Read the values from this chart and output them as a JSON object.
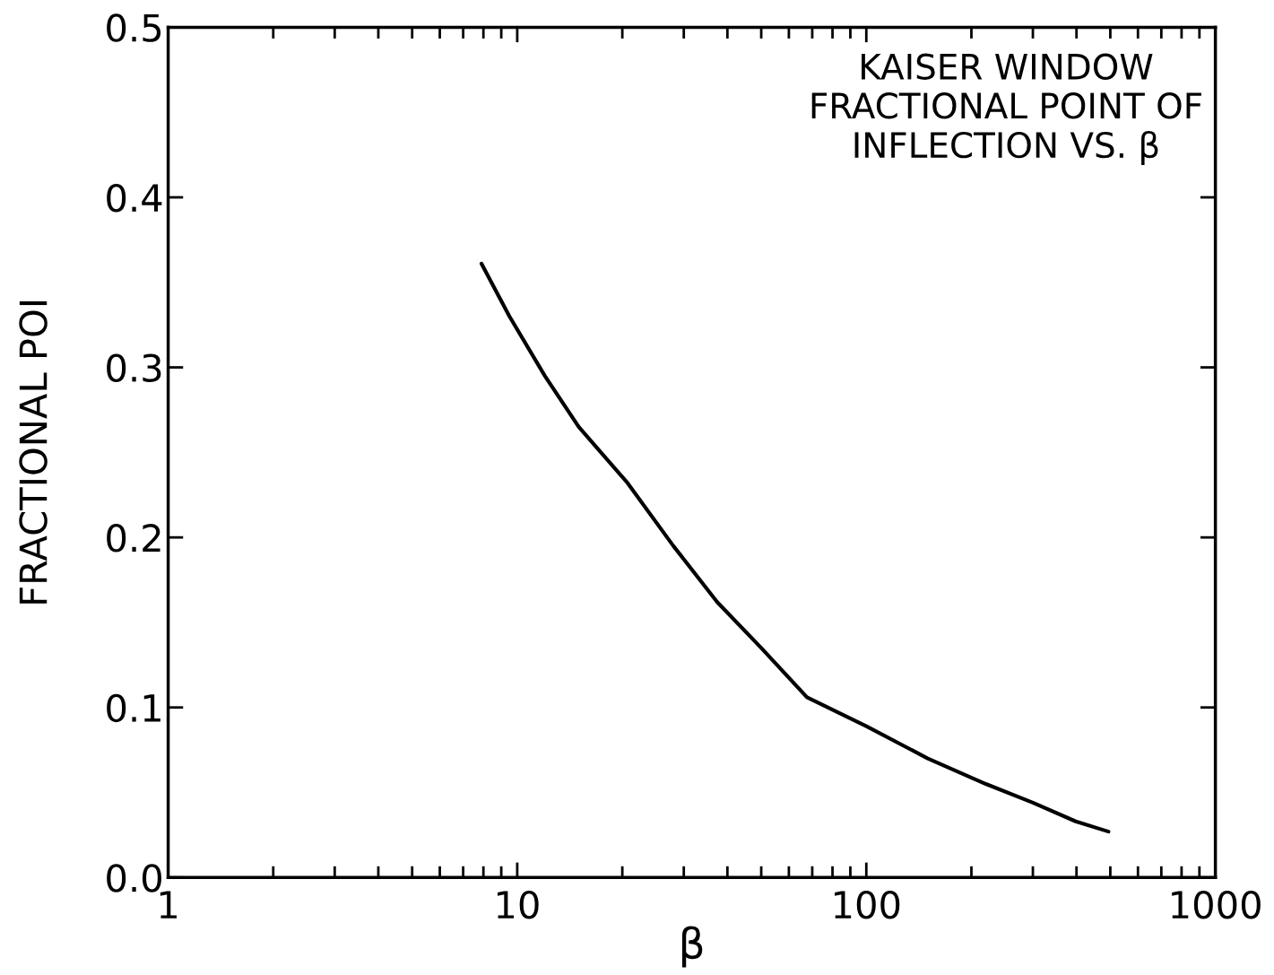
{
  "chart_data": {
    "type": "line",
    "title": "KAISER WINDOW\nFRACTIONAL POINT OF\nINFLECTION VS. β",
    "xlabel": "β",
    "ylabel": "FRACTIONAL POI",
    "log": "x",
    "xlim": [
      1,
      1000
    ],
    "xticks": [
      1,
      10,
      100,
      1000
    ],
    "ylim": [
      0,
      0.5
    ],
    "yticks": [
      {
        "value": 0,
        "label": "0.0"
      },
      {
        "value": 0.1,
        "label": "0.1"
      },
      {
        "value": 0.2,
        "label": "0.2"
      },
      {
        "value": 0.3,
        "label": "0.3"
      },
      {
        "value": 0.4,
        "label": "0.4"
      },
      {
        "value": 0.5,
        "label": "0.5"
      }
    ],
    "grid": false,
    "legend": false,
    "marker": "none",
    "line_style": "solid",
    "series": [
      {
        "color": "#000000",
        "x": [
          7.9,
          9.5,
          12,
          15,
          20.7,
          28,
          37.4,
          50,
          67.6,
          100,
          150,
          220,
          300,
          398,
          494
        ],
        "values": [
          0.361,
          0.33,
          0.295,
          0.265,
          0.232,
          0.195,
          0.162,
          0.135,
          0.106,
          0.089,
          0.07,
          0.055,
          0.044,
          0.033,
          0.027
        ]
      }
    ]
  }
}
